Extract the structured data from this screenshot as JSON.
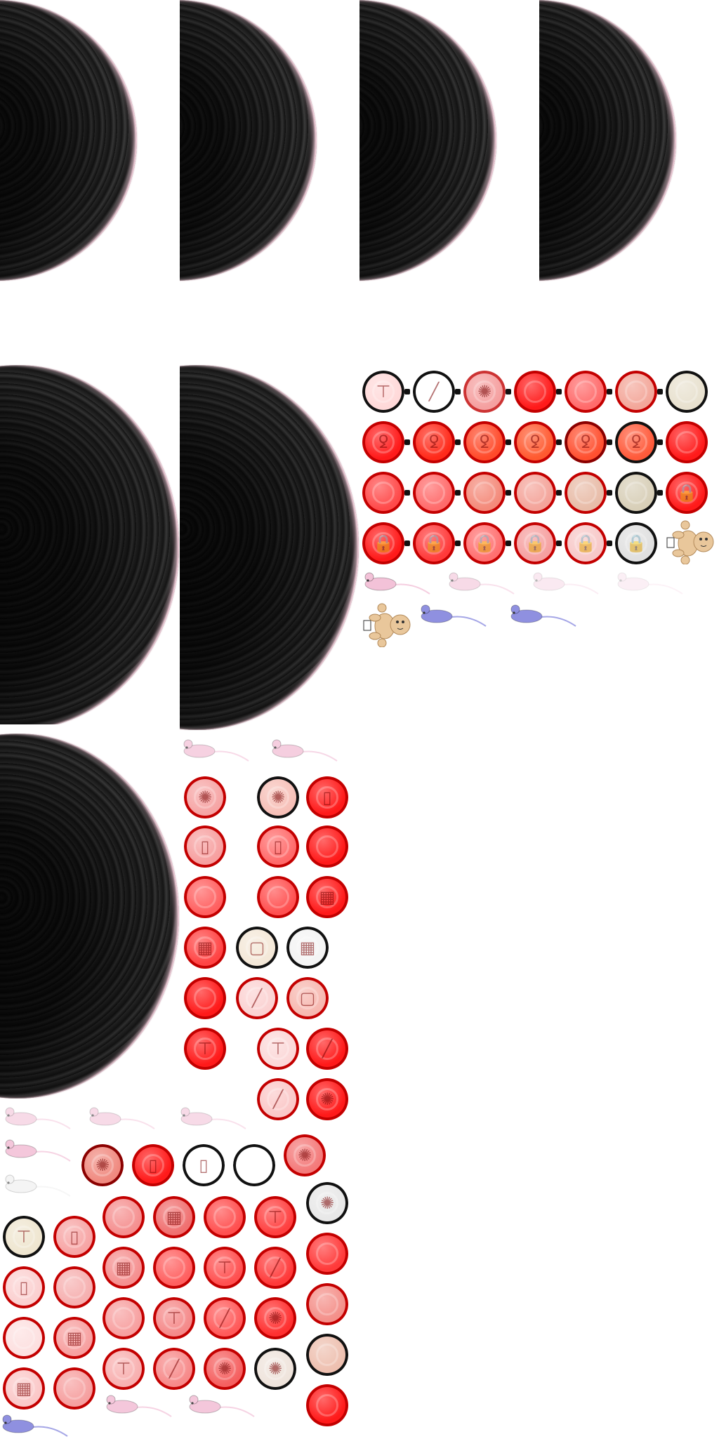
{
  "spritesheet": {
    "spheres": [
      {
        "name": "cell-sphere-1"
      },
      {
        "name": "cell-sphere-2"
      },
      {
        "name": "cell-sphere-3"
      },
      {
        "name": "cell-sphere-4"
      },
      {
        "name": "cell-sphere-5"
      },
      {
        "name": "cell-sphere-6"
      },
      {
        "name": "cell-sphere-7"
      }
    ],
    "colors": {
      "red": "#ff1a1a",
      "red_dark": "#c40000",
      "pink": "#f5a0a0",
      "pale": "#ffd9d9",
      "beige": "#e6ddc8",
      "grey": "#bdbdbd",
      "mouse_pink": "#f3c2d8",
      "mouse_blue": "#8f90e0",
      "bear": "#e9c79b"
    },
    "icons": [
      "iud-icon",
      "needle-icon",
      "diaphragm-icon",
      "pill-pack-icon",
      "vial-icon",
      "patch-icon",
      "lock-icon",
      "sperm-icon",
      "mouse-icon",
      "teddy-bear-icon"
    ]
  }
}
